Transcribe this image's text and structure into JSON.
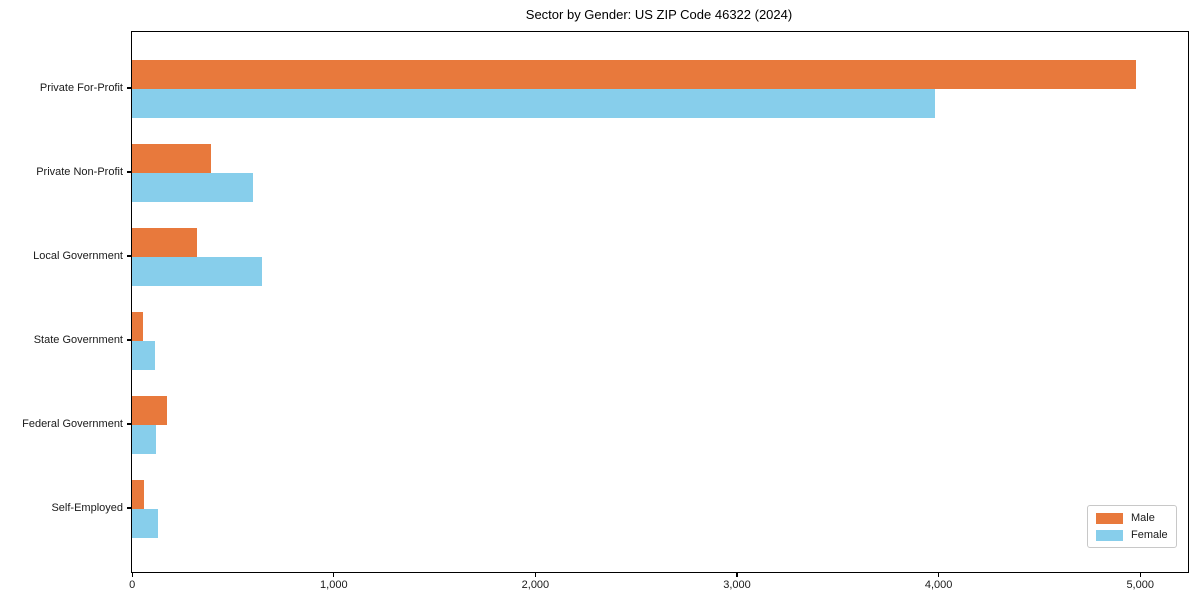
{
  "chart_data": {
    "type": "bar",
    "orientation": "horizontal",
    "title": "Sector by Gender: US ZIP Code 46322 (2024)",
    "categories": [
      "Private For-Profit",
      "Private Non-Profit",
      "Local Government",
      "State Government",
      "Federal Government",
      "Self-Employed"
    ],
    "series": [
      {
        "name": "Male",
        "color": "#e8793c",
        "values": [
          4980,
          390,
          320,
          55,
          175,
          60
        ]
      },
      {
        "name": "Female",
        "color": "#87ceeb",
        "values": [
          3985,
          600,
          645,
          115,
          120,
          130
        ]
      }
    ],
    "xlabel": "",
    "ylabel": "",
    "xlim": [
      0,
      5238
    ],
    "x_ticks": [
      0,
      1000,
      2000,
      3000,
      4000,
      5000
    ],
    "x_tick_labels": [
      "0",
      "1,000",
      "2,000",
      "3,000",
      "4,000",
      "5,000"
    ],
    "grid": false,
    "legend_position": "lower right"
  }
}
